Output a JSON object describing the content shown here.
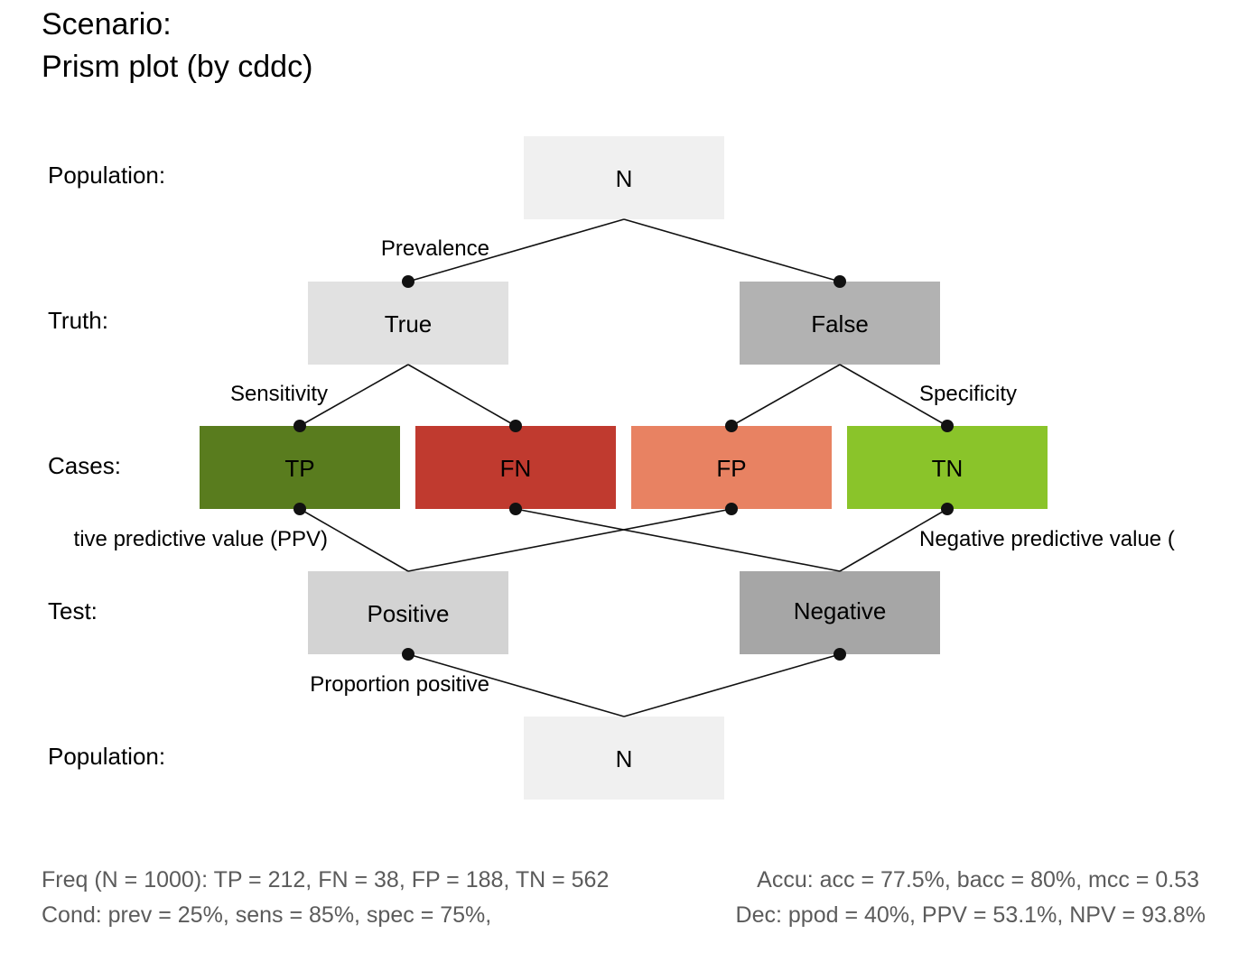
{
  "title": {
    "line1": "Scenario:",
    "line2": "Prism plot (by cddc)"
  },
  "rows": {
    "population_top": "Population:",
    "truth": "Truth:",
    "cases": "Cases:",
    "test": "Test:",
    "population_bottom": "Population:"
  },
  "boxes": {
    "n_top": {
      "label": "N",
      "color": "#f0f0f0"
    },
    "true": {
      "label": "True",
      "color": "#e1e1e1"
    },
    "false": {
      "label": "False",
      "color": "#b2b2b2"
    },
    "tp": {
      "label": "TP",
      "color": "#597c1e"
    },
    "fn": {
      "label": "FN",
      "color": "#c03a2f"
    },
    "fp": {
      "label": "FP",
      "color": "#e88262"
    },
    "tn": {
      "label": "TN",
      "color": "#8ac42a"
    },
    "positive": {
      "label": "Positive",
      "color": "#d3d3d3"
    },
    "negative": {
      "label": "Negative",
      "color": "#a6a6a6"
    },
    "n_bottom": {
      "label": "N",
      "color": "#f0f0f0"
    }
  },
  "edge_labels": {
    "prevalence": "Prevalence",
    "sensitivity": "Sensitivity",
    "specificity": "Specificity",
    "ppv": "tive predictive value (PPV)",
    "npv": "Negative predictive value (",
    "proportion_positive": "Proportion positive"
  },
  "footer": {
    "freq": "Freq (N = 1000):  TP = 212, FN = 38, FP = 188, TN = 562",
    "accu": "Accu:  acc = 77.5%, bacc = 80%, mcc = 0.53",
    "cond": "Cond:  prev = 25%, sens = 85%, spec = 75%,",
    "dec": "Dec:  ppod = 40%, PPV = 53.1%, NPV = 93.8%"
  },
  "colors": {
    "line": "#111111",
    "footer_text": "#5b5b5b"
  }
}
